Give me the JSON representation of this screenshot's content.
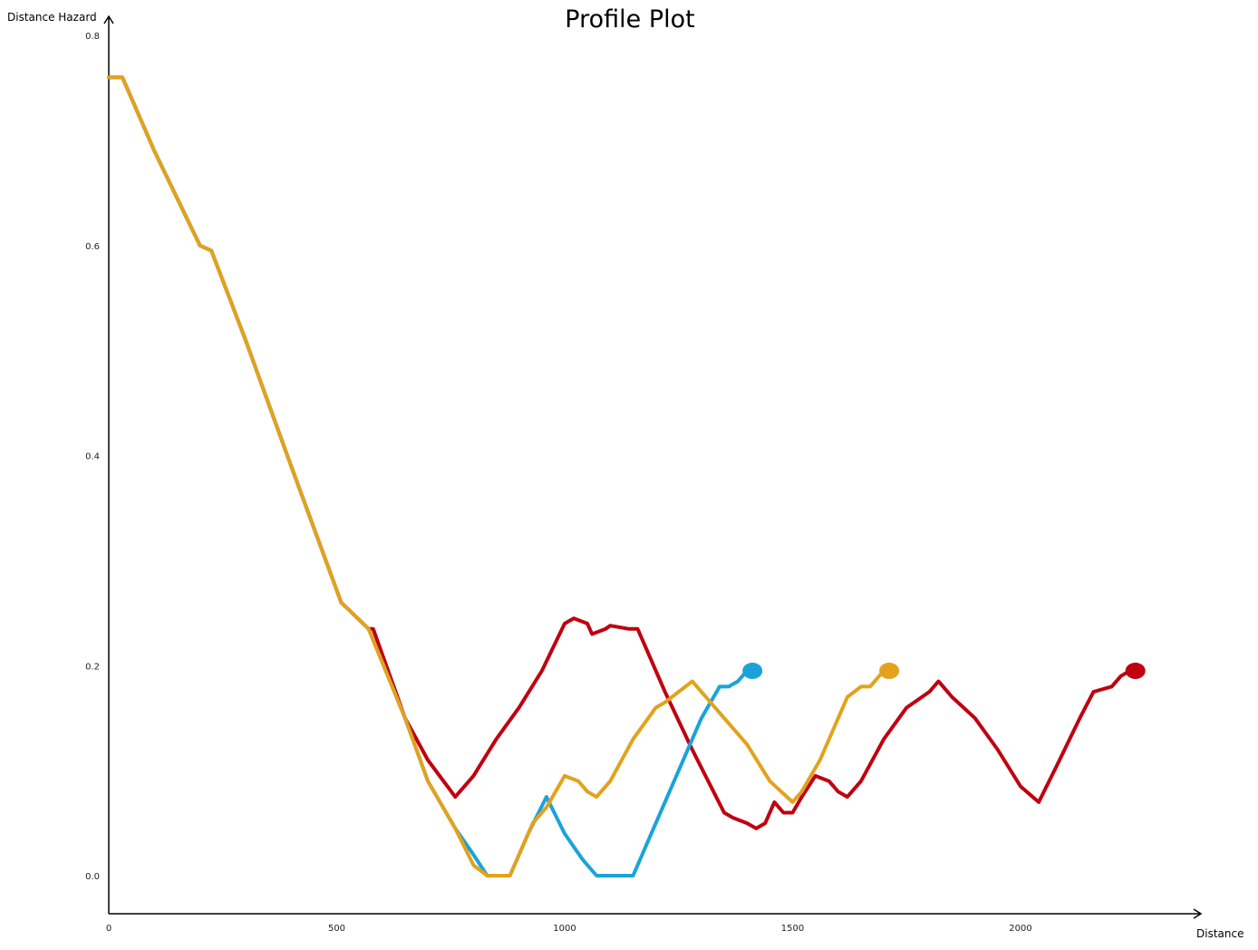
{
  "chart_data": {
    "type": "line",
    "title": "Profile Plot",
    "xlabel": "Distance",
    "ylabel": "Distance Hazard",
    "xlim": [
      0,
      2380
    ],
    "ylim": [
      -0.037,
      0.82
    ],
    "x_ticks": [
      0,
      500,
      1000,
      1500,
      2000
    ],
    "x_tick_labels": [
      "0",
      "500",
      "1000",
      "1500",
      "2000"
    ],
    "y_ticks": [
      0.0,
      0.2,
      0.4,
      0.6,
      0.8
    ],
    "y_tick_labels": [
      "0.0",
      "0.2",
      "0.4",
      "0.6",
      "0.8"
    ],
    "grid": false,
    "legend": "none",
    "end_markers": true,
    "series": [
      {
        "color": "#c0000f",
        "points": [
          [
            0,
            0.76
          ],
          [
            30,
            0.76
          ],
          [
            100,
            0.69
          ],
          [
            200,
            0.6
          ],
          [
            225,
            0.595
          ],
          [
            300,
            0.51
          ],
          [
            400,
            0.39
          ],
          [
            510,
            0.26
          ],
          [
            570,
            0.235
          ],
          [
            580,
            0.235
          ],
          [
            650,
            0.15
          ],
          [
            700,
            0.11
          ],
          [
            760,
            0.075
          ],
          [
            800,
            0.095
          ],
          [
            850,
            0.13
          ],
          [
            900,
            0.16
          ],
          [
            950,
            0.195
          ],
          [
            1000,
            0.24
          ],
          [
            1020,
            0.245
          ],
          [
            1050,
            0.24
          ],
          [
            1060,
            0.23
          ],
          [
            1090,
            0.235
          ],
          [
            1100,
            0.238
          ],
          [
            1140,
            0.235
          ],
          [
            1160,
            0.235
          ],
          [
            1220,
            0.175
          ],
          [
            1280,
            0.12
          ],
          [
            1350,
            0.06
          ],
          [
            1370,
            0.055
          ],
          [
            1400,
            0.05
          ],
          [
            1420,
            0.045
          ],
          [
            1440,
            0.05
          ],
          [
            1460,
            0.07
          ],
          [
            1480,
            0.06
          ],
          [
            1500,
            0.06
          ],
          [
            1520,
            0.075
          ],
          [
            1550,
            0.095
          ],
          [
            1580,
            0.09
          ],
          [
            1600,
            0.08
          ],
          [
            1620,
            0.075
          ],
          [
            1650,
            0.09
          ],
          [
            1700,
            0.13
          ],
          [
            1750,
            0.16
          ],
          [
            1800,
            0.175
          ],
          [
            1820,
            0.185
          ],
          [
            1850,
            0.17
          ],
          [
            1900,
            0.15
          ],
          [
            1950,
            0.12
          ],
          [
            2000,
            0.085
          ],
          [
            2040,
            0.07
          ],
          [
            2080,
            0.105
          ],
          [
            2130,
            0.15
          ],
          [
            2160,
            0.175
          ],
          [
            2200,
            0.18
          ],
          [
            2220,
            0.19
          ],
          [
            2240,
            0.195
          ]
        ]
      },
      {
        "color": "#1ba3d9",
        "points": [
          [
            0,
            0.76
          ],
          [
            30,
            0.76
          ],
          [
            100,
            0.69
          ],
          [
            200,
            0.6
          ],
          [
            225,
            0.595
          ],
          [
            300,
            0.51
          ],
          [
            400,
            0.39
          ],
          [
            510,
            0.26
          ],
          [
            570,
            0.235
          ],
          [
            650,
            0.15
          ],
          [
            700,
            0.09
          ],
          [
            760,
            0.045
          ],
          [
            800,
            0.02
          ],
          [
            830,
            0.0
          ],
          [
            880,
            0.0
          ],
          [
            920,
            0.04
          ],
          [
            960,
            0.075
          ],
          [
            1000,
            0.04
          ],
          [
            1040,
            0.015
          ],
          [
            1070,
            0.0
          ],
          [
            1150,
            0.0
          ],
          [
            1200,
            0.05
          ],
          [
            1250,
            0.1
          ],
          [
            1300,
            0.15
          ],
          [
            1340,
            0.18
          ],
          [
            1360,
            0.18
          ],
          [
            1380,
            0.185
          ],
          [
            1400,
            0.195
          ]
        ]
      },
      {
        "color": "#e3a21c",
        "points": [
          [
            0,
            0.76
          ],
          [
            30,
            0.76
          ],
          [
            100,
            0.69
          ],
          [
            200,
            0.6
          ],
          [
            225,
            0.595
          ],
          [
            300,
            0.51
          ],
          [
            400,
            0.39
          ],
          [
            510,
            0.26
          ],
          [
            570,
            0.235
          ],
          [
            650,
            0.15
          ],
          [
            700,
            0.09
          ],
          [
            760,
            0.045
          ],
          [
            800,
            0.01
          ],
          [
            830,
            0.0
          ],
          [
            880,
            0.0
          ],
          [
            930,
            0.05
          ],
          [
            960,
            0.065
          ],
          [
            1000,
            0.095
          ],
          [
            1030,
            0.09
          ],
          [
            1050,
            0.08
          ],
          [
            1070,
            0.075
          ],
          [
            1100,
            0.09
          ],
          [
            1150,
            0.13
          ],
          [
            1200,
            0.16
          ],
          [
            1220,
            0.165
          ],
          [
            1280,
            0.185
          ],
          [
            1300,
            0.175
          ],
          [
            1350,
            0.15
          ],
          [
            1400,
            0.125
          ],
          [
            1450,
            0.09
          ],
          [
            1500,
            0.07
          ],
          [
            1520,
            0.08
          ],
          [
            1560,
            0.11
          ],
          [
            1620,
            0.17
          ],
          [
            1650,
            0.18
          ],
          [
            1670,
            0.18
          ],
          [
            1700,
            0.195
          ]
        ]
      }
    ]
  }
}
